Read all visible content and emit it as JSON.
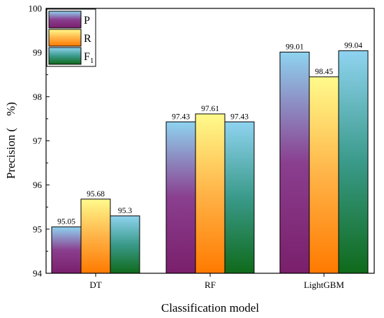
{
  "chart_data": {
    "type": "bar",
    "categories": [
      "DT",
      "RF",
      "LightGBM"
    ],
    "series": [
      {
        "name": "P",
        "values": [
          95.05,
          97.43,
          99.01
        ],
        "labels": [
          "95.05",
          "97.43",
          "99.01"
        ],
        "gradient": [
          "#8fd3f0",
          "#8a3f8f",
          "#7a1f6b"
        ]
      },
      {
        "name": "R",
        "values": [
          95.68,
          97.61,
          98.45
        ],
        "labels": [
          "95.68",
          "97.61",
          "98.45"
        ],
        "gradient": [
          "#fffb8c",
          "#ffb347",
          "#ff7a00"
        ]
      },
      {
        "name": "F",
        "subscript": "1",
        "values": [
          95.3,
          97.43,
          99.04
        ],
        "labels": [
          "95.3",
          "97.43",
          "99.04"
        ],
        "gradient": [
          "#8fd3f0",
          "#3a9a8a",
          "#0f6a1a"
        ]
      }
    ],
    "xlabel": "Classification model",
    "ylabel": "Precision (　%)",
    "ylim": [
      94,
      100
    ],
    "yticks": [
      94,
      95,
      96,
      97,
      98,
      99,
      100
    ],
    "grid": false,
    "legend_position": "top-left"
  }
}
